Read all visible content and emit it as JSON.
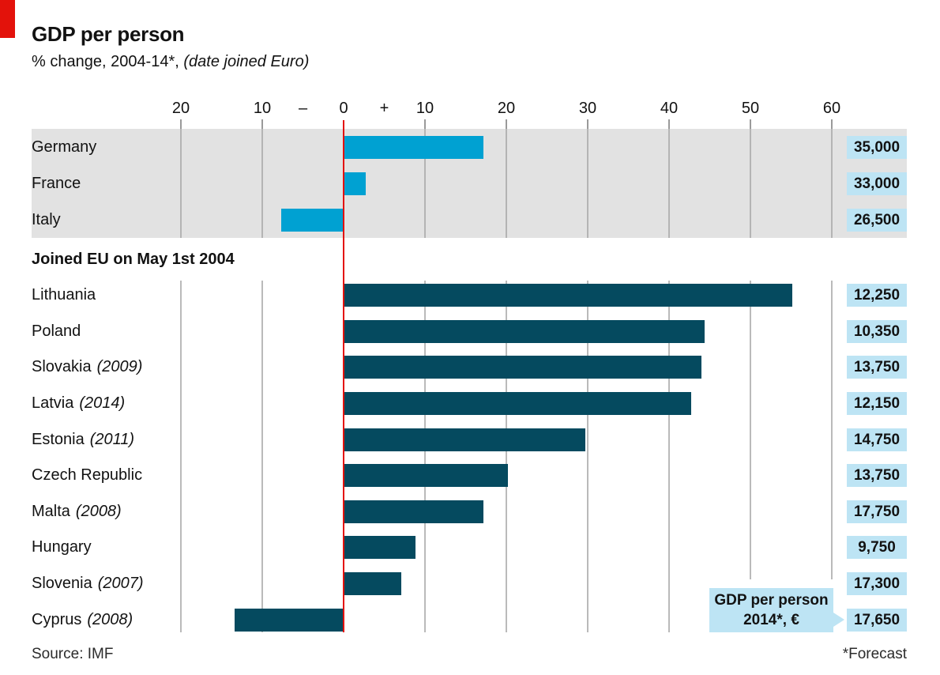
{
  "header": {
    "title": "GDP per person",
    "subtitle": "% change, 2004-14*, ",
    "subtitle_italic": "(date joined Euro)"
  },
  "axis": {
    "ticks": [
      {
        "label": "20",
        "value": -20
      },
      {
        "label": "10",
        "value": -10
      },
      {
        "label": "–",
        "value": -5,
        "symbol": true
      },
      {
        "label": "0",
        "value": 0,
        "zero": true
      },
      {
        "label": "+",
        "value": 5,
        "symbol": true
      },
      {
        "label": "10",
        "value": 10
      },
      {
        "label": "20",
        "value": 20
      },
      {
        "label": "30",
        "value": 30
      },
      {
        "label": "40",
        "value": 40
      },
      {
        "label": "50",
        "value": 50,
        "short_grid": true
      },
      {
        "label": "60",
        "value": 60,
        "short_grid": true
      }
    ]
  },
  "chart_data": {
    "type": "bar",
    "orientation": "horizontal",
    "title": "GDP per person",
    "subtitle": "% change, 2004-14*, (date joined Euro)",
    "xlabel": "% change 2004-14",
    "xlim": [
      -25,
      67
    ],
    "gridlines": true,
    "groups": [
      {
        "name": "pre-2004-eu-members",
        "heading": "",
        "bar_color": "#00a1d2",
        "rows": [
          {
            "country": "Germany",
            "euro_year": "",
            "pct_change": 17.1,
            "gdp_2014": "35,000"
          },
          {
            "country": "France",
            "euro_year": "",
            "pct_change": 2.6,
            "gdp_2014": "33,000"
          },
          {
            "country": "Italy",
            "euro_year": "",
            "pct_change": -7.6,
            "gdp_2014": "26,500"
          }
        ]
      },
      {
        "name": "joined-eu-2004",
        "heading": "Joined EU on May 1st 2004",
        "bar_color": "#054a5f",
        "rows": [
          {
            "country": "Lithuania",
            "euro_year": "",
            "pct_change": 55.0,
            "gdp_2014": "12,250"
          },
          {
            "country": "Poland",
            "euro_year": "",
            "pct_change": 44.3,
            "gdp_2014": "10,350"
          },
          {
            "country": "Slovakia",
            "euro_year": "(2009)",
            "pct_change": 43.9,
            "gdp_2014": "13,750"
          },
          {
            "country": "Latvia",
            "euro_year": "(2014)",
            "pct_change": 42.6,
            "gdp_2014": "12,150"
          },
          {
            "country": "Estonia",
            "euro_year": "(2011)",
            "pct_change": 29.6,
            "gdp_2014": "14,750"
          },
          {
            "country": "Czech Republic",
            "euro_year": "",
            "pct_change": 20.1,
            "gdp_2014": "13,750"
          },
          {
            "country": "Malta",
            "euro_year": "(2008)",
            "pct_change": 17.1,
            "gdp_2014": "17,750"
          },
          {
            "country": "Hungary",
            "euro_year": "",
            "pct_change": 8.7,
            "gdp_2014": "9,750"
          },
          {
            "country": "Slovenia",
            "euro_year": "(2007)",
            "pct_change": 7.0,
            "gdp_2014": "17,300"
          },
          {
            "country": "Cyprus",
            "euro_year": "(2008)",
            "pct_change": -13.3,
            "gdp_2014": "17,650"
          }
        ]
      }
    ]
  },
  "callout": {
    "line1": "GDP per person",
    "line2": "2014*, €"
  },
  "footer": {
    "source": "Source: IMF",
    "footnote": "*Forecast"
  },
  "colors": {
    "accent_red": "#e3120b",
    "bar_blue": "#00a1d2",
    "bar_dark_teal": "#054a5f",
    "badge_blue": "#bde4f4",
    "band_gray": "#e2e2e2",
    "gridline_gray": "#b4b4b4"
  }
}
